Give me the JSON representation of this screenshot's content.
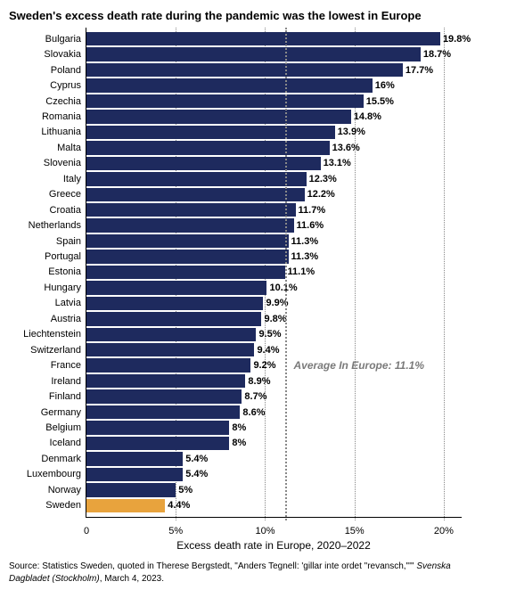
{
  "chart": {
    "type": "bar-horizontal",
    "title": "Sweden's excess death rate during the pandemic was the lowest in Europe",
    "x_axis_title": "Excess death rate in Europe, 2020–2022",
    "x_min": 0,
    "x_max": 21,
    "x_ticks": [
      0,
      5,
      10,
      15,
      20
    ],
    "x_tick_labels": [
      "0",
      "5%",
      "10%",
      "15%",
      "20%"
    ],
    "average_value": 11.1,
    "average_label": "Average In Europe: 11.1%",
    "bar_color_default": "#1e2a5e",
    "bar_color_highlight": "#e8a33d",
    "grid_color": "#888888",
    "background_color": "#ffffff",
    "label_fontsize": 11,
    "title_fontsize": 13,
    "rows": [
      {
        "label": "Bulgaria",
        "value": 19.8,
        "text": "19.8%",
        "highlight": false
      },
      {
        "label": "Slovakia",
        "value": 18.7,
        "text": "18.7%",
        "highlight": false
      },
      {
        "label": "Poland",
        "value": 17.7,
        "text": "17.7%",
        "highlight": false
      },
      {
        "label": "Cyprus",
        "value": 16.0,
        "text": "16%",
        "highlight": false
      },
      {
        "label": "Czechia",
        "value": 15.5,
        "text": "15.5%",
        "highlight": false
      },
      {
        "label": "Romania",
        "value": 14.8,
        "text": "14.8%",
        "highlight": false
      },
      {
        "label": "Lithuania",
        "value": 13.9,
        "text": "13.9%",
        "highlight": false
      },
      {
        "label": "Malta",
        "value": 13.6,
        "text": "13.6%",
        "highlight": false
      },
      {
        "label": "Slovenia",
        "value": 13.1,
        "text": "13.1%",
        "highlight": false
      },
      {
        "label": "Italy",
        "value": 12.3,
        "text": "12.3%",
        "highlight": false
      },
      {
        "label": "Greece",
        "value": 12.2,
        "text": "12.2%",
        "highlight": false
      },
      {
        "label": "Croatia",
        "value": 11.7,
        "text": "11.7%",
        "highlight": false
      },
      {
        "label": "Netherlands",
        "value": 11.6,
        "text": "11.6%",
        "highlight": false
      },
      {
        "label": "Spain",
        "value": 11.3,
        "text": "11.3%",
        "highlight": false
      },
      {
        "label": "Portugal",
        "value": 11.3,
        "text": "11.3%",
        "highlight": false
      },
      {
        "label": "Estonia",
        "value": 11.1,
        "text": "11.1%",
        "highlight": false
      },
      {
        "label": "Hungary",
        "value": 10.1,
        "text": "10.1%",
        "highlight": false
      },
      {
        "label": "Latvia",
        "value": 9.9,
        "text": "9.9%",
        "highlight": false
      },
      {
        "label": "Austria",
        "value": 9.8,
        "text": "9.8%",
        "highlight": false
      },
      {
        "label": "Liechtenstein",
        "value": 9.5,
        "text": "9.5%",
        "highlight": false
      },
      {
        "label": "Switzerland",
        "value": 9.4,
        "text": "9.4%",
        "highlight": false
      },
      {
        "label": "France",
        "value": 9.2,
        "text": "9.2%",
        "highlight": false
      },
      {
        "label": "Ireland",
        "value": 8.9,
        "text": "8.9%",
        "highlight": false
      },
      {
        "label": "Finland",
        "value": 8.7,
        "text": "8.7%",
        "highlight": false
      },
      {
        "label": "Germany",
        "value": 8.6,
        "text": "8.6%",
        "highlight": false
      },
      {
        "label": "Belgium",
        "value": 8.0,
        "text": "8%",
        "highlight": false
      },
      {
        "label": "Iceland",
        "value": 8.0,
        "text": "8%",
        "highlight": false
      },
      {
        "label": "Denmark",
        "value": 5.4,
        "text": "5.4%",
        "highlight": false
      },
      {
        "label": "Luxembourg",
        "value": 5.4,
        "text": "5.4%",
        "highlight": false
      },
      {
        "label": "Norway",
        "value": 5.0,
        "text": "5%",
        "highlight": false
      },
      {
        "label": "Sweden",
        "value": 4.4,
        "text": "4.4%",
        "highlight": true
      }
    ]
  },
  "source": {
    "prefix": "Source: Statistics Sweden, quoted in Therese Bergstedt, \"Anders Tegnell: 'gillar inte ordet \"revansch,\"'\" ",
    "ital": "Svenska Dagbladet (Stockholm)",
    "suffix": ", March 4, 2023."
  }
}
